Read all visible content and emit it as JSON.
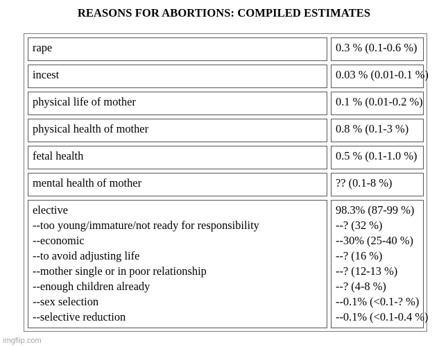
{
  "title": "REASONS FOR ABORTIONS: COMPILED ESTIMATES",
  "rows": [
    {
      "reason": [
        "rape"
      ],
      "estimate": [
        "0.3 % (0.1-0.6 %)"
      ]
    },
    {
      "reason": [
        "incest"
      ],
      "estimate": [
        "0.03 % (0.01-0.1 %)"
      ]
    },
    {
      "reason": [
        "physical life of mother"
      ],
      "estimate": [
        "0.1 % (0.01-0.2 %)"
      ]
    },
    {
      "reason": [
        "physical health of mother"
      ],
      "estimate": [
        "0.8 % (0.1-3 %)"
      ]
    },
    {
      "reason": [
        "fetal health"
      ],
      "estimate": [
        "0.5 % (0.1-1.0 %)"
      ]
    },
    {
      "reason": [
        "mental health of mother"
      ],
      "estimate": [
        "?? (0.1-8 %)"
      ]
    },
    {
      "reason": [
        "elective",
        "--too young/immature/not ready for responsibility",
        "--economic",
        "--to avoid adjusting life",
        "--mother single or in poor relationship",
        "--enough children already",
        "--sex selection",
        "--selective reduction"
      ],
      "estimate": [
        "98.3% (87-99 %)",
        "--? (32 %)",
        "--30% (25-40 %)",
        "--? (16 %)",
        "--? (12-13 %)",
        "--? (4-8 %)",
        "--0.1% (<0.1-? %)",
        "--0.1% (<0.1-0.4 %)"
      ]
    }
  ],
  "watermark": "imgflip.com"
}
